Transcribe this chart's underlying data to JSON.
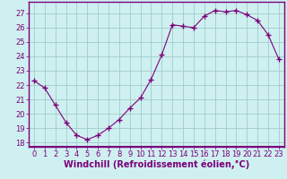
{
  "hours": [
    0,
    1,
    2,
    3,
    4,
    5,
    6,
    7,
    8,
    9,
    10,
    11,
    12,
    13,
    14,
    15,
    16,
    17,
    18,
    19,
    20,
    21,
    22,
    23
  ],
  "values": [
    22.3,
    21.8,
    20.6,
    19.4,
    18.5,
    18.2,
    18.5,
    19.0,
    19.6,
    20.4,
    21.1,
    22.4,
    24.1,
    26.2,
    26.1,
    26.0,
    26.8,
    27.2,
    27.1,
    27.2,
    26.9,
    26.5,
    25.5,
    23.8
  ],
  "line_color": "#7b007b",
  "marker": "+",
  "marker_size": 4,
  "bg_color": "#cff0f0",
  "grid_color": "#a0cccc",
  "ylabel_values": [
    18,
    19,
    20,
    21,
    22,
    23,
    24,
    25,
    26,
    27
  ],
  "ylim": [
    17.7,
    27.8
  ],
  "xlim": [
    -0.5,
    23.5
  ],
  "xlabel": "Windchill (Refroidissement éolien,°C)",
  "xlabel_fontsize": 7,
  "tick_fontsize": 6,
  "axis_label_color": "#7b007b",
  "spine_color": "#7b007b",
  "separator_color": "#7b007b"
}
